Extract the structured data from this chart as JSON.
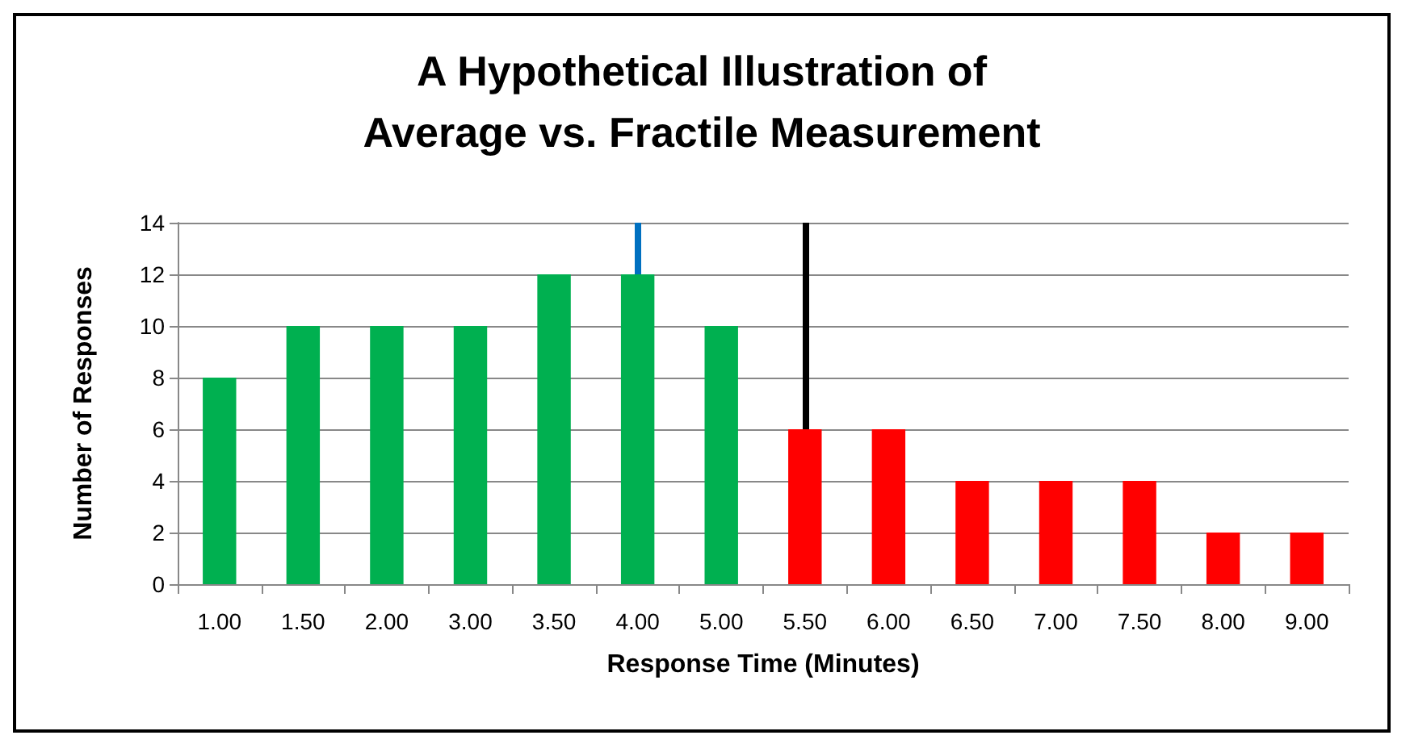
{
  "chart_data": {
    "type": "bar",
    "title": "A Hypothetical Illustration of\nAverage vs. Fractile Measurement",
    "xlabel": "Response Time (Minutes)",
    "ylabel": "Number of Responses",
    "categories": [
      "1.00",
      "1.50",
      "2.00",
      "3.00",
      "3.50",
      "4.00",
      "5.00",
      "5.50",
      "6.00",
      "6.50",
      "7.00",
      "7.50",
      "8.00",
      "9.00"
    ],
    "values": [
      8,
      10,
      10,
      10,
      12,
      12,
      10,
      6,
      6,
      4,
      4,
      4,
      2,
      2
    ],
    "colors": [
      "#00b050",
      "#00b050",
      "#00b050",
      "#00b050",
      "#00b050",
      "#00b050",
      "#00b050",
      "#ff0000",
      "#ff0000",
      "#ff0000",
      "#ff0000",
      "#ff0000",
      "#ff0000",
      "#ff0000"
    ],
    "ylim": [
      0,
      14
    ],
    "yticks": [
      0,
      2,
      4,
      6,
      8,
      10,
      12,
      14
    ],
    "grid": "y",
    "ref_lines": [
      {
        "axis": "x",
        "value": "4.00",
        "color": "#0070c0"
      },
      {
        "axis": "x",
        "value": "5.50",
        "color": "#000000"
      }
    ]
  }
}
